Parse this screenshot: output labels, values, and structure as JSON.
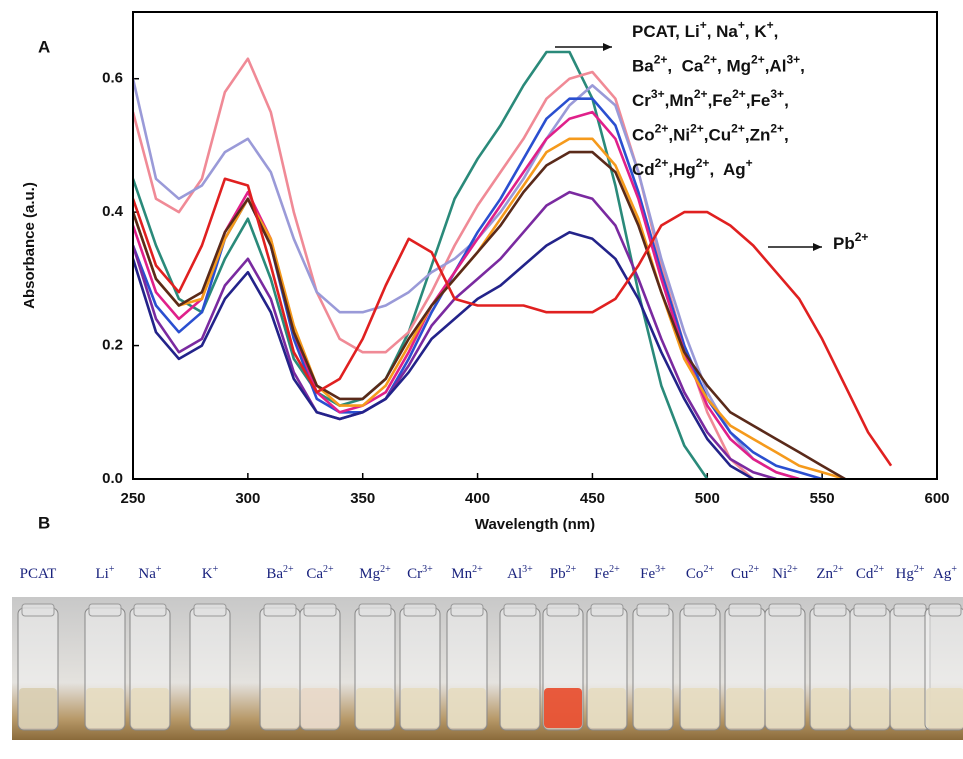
{
  "panel_labels": [
    "A",
    "B"
  ],
  "chart_data": {
    "type": "line",
    "xlabel": "Wavelength (nm)",
    "ylabel": "Absorbance (a.u.)",
    "xlim": [
      250,
      600
    ],
    "ylim": [
      0,
      0.7
    ],
    "xticks": [
      250,
      300,
      350,
      400,
      450,
      500,
      550,
      600
    ],
    "yticks": [
      {
        "value": 0,
        "label": "0.0"
      },
      0.2,
      0.4,
      0.6
    ],
    "x": [
      250,
      260,
      270,
      280,
      290,
      300,
      310,
      320,
      330,
      340,
      350,
      360,
      370,
      380,
      390,
      400,
      410,
      420,
      430,
      440,
      450,
      460,
      470,
      480,
      490,
      500,
      510,
      520,
      530,
      540,
      550,
      560,
      570,
      580,
      590
    ],
    "series": [
      {
        "color": "#2a8a7a",
        "values": [
          0.45,
          0.35,
          0.27,
          0.25,
          0.33,
          0.39,
          0.3,
          0.18,
          0.13,
          0.11,
          0.12,
          0.15,
          0.22,
          0.32,
          0.42,
          0.48,
          0.53,
          0.59,
          0.64,
          0.64,
          0.57,
          0.44,
          0.28,
          0.14,
          0.05,
          0.0,
          null,
          null,
          null,
          null,
          null,
          null,
          null,
          null,
          null
        ]
      },
      {
        "color": "#f08a96",
        "values": [
          0.55,
          0.42,
          0.4,
          0.45,
          0.58,
          0.63,
          0.55,
          0.4,
          0.28,
          0.21,
          0.19,
          0.19,
          0.22,
          0.28,
          0.35,
          0.41,
          0.46,
          0.51,
          0.57,
          0.6,
          0.61,
          0.57,
          0.46,
          0.32,
          0.2,
          0.1,
          0.03,
          0.0,
          null,
          null,
          null,
          null,
          null,
          null,
          null
        ]
      },
      {
        "color": "#9a9ad8",
        "values": [
          0.6,
          0.45,
          0.42,
          0.44,
          0.49,
          0.51,
          0.46,
          0.36,
          0.28,
          0.25,
          0.25,
          0.26,
          0.28,
          0.31,
          0.33,
          0.36,
          0.4,
          0.45,
          0.51,
          0.56,
          0.59,
          0.56,
          0.46,
          0.33,
          0.22,
          0.13,
          0.07,
          0.03,
          0.01,
          0.0,
          null,
          null,
          null,
          null,
          null
        ]
      },
      {
        "color": "#2a4fd0",
        "values": [
          0.35,
          0.26,
          0.22,
          0.25,
          0.36,
          0.42,
          0.35,
          0.21,
          0.12,
          0.1,
          0.1,
          0.12,
          0.18,
          0.25,
          0.31,
          0.37,
          0.42,
          0.48,
          0.54,
          0.57,
          0.57,
          0.53,
          0.43,
          0.31,
          0.2,
          0.12,
          0.07,
          0.04,
          0.02,
          0.01,
          0.0,
          null,
          null,
          null,
          null
        ]
      },
      {
        "color": "#e0208a",
        "values": [
          0.38,
          0.28,
          0.24,
          0.27,
          0.37,
          0.43,
          0.36,
          0.22,
          0.13,
          0.1,
          0.11,
          0.13,
          0.19,
          0.26,
          0.31,
          0.36,
          0.41,
          0.46,
          0.51,
          0.54,
          0.55,
          0.51,
          0.42,
          0.3,
          0.19,
          0.11,
          0.06,
          0.03,
          0.01,
          0.0,
          null,
          null,
          null,
          null,
          null
        ]
      },
      {
        "color": "#f59a1c",
        "values": [
          0.4,
          0.3,
          0.26,
          0.27,
          0.36,
          0.42,
          0.36,
          0.23,
          0.14,
          0.11,
          0.11,
          0.14,
          0.2,
          0.26,
          0.3,
          0.34,
          0.39,
          0.44,
          0.49,
          0.51,
          0.51,
          0.47,
          0.39,
          0.28,
          0.18,
          0.12,
          0.08,
          0.06,
          0.04,
          0.02,
          0.01,
          0.0,
          null,
          null,
          null
        ]
      },
      {
        "color": "#5a2a1a",
        "values": [
          0.4,
          0.3,
          0.26,
          0.28,
          0.37,
          0.42,
          0.35,
          0.22,
          0.14,
          0.12,
          0.12,
          0.15,
          0.21,
          0.26,
          0.3,
          0.34,
          0.38,
          0.43,
          0.47,
          0.49,
          0.49,
          0.46,
          0.38,
          0.28,
          0.19,
          0.14,
          0.1,
          0.08,
          0.06,
          0.04,
          0.02,
          0.0,
          null,
          null,
          null
        ]
      },
      {
        "color": "#7a2aa0",
        "values": [
          0.35,
          0.24,
          0.19,
          0.21,
          0.29,
          0.33,
          0.27,
          0.16,
          0.1,
          0.09,
          0.1,
          0.12,
          0.17,
          0.23,
          0.27,
          0.3,
          0.33,
          0.37,
          0.41,
          0.43,
          0.42,
          0.38,
          0.3,
          0.21,
          0.13,
          0.07,
          0.03,
          0.01,
          0.0,
          null,
          null,
          null,
          null,
          null,
          null
        ]
      },
      {
        "color": "#23238a",
        "values": [
          0.33,
          0.22,
          0.18,
          0.2,
          0.27,
          0.31,
          0.25,
          0.15,
          0.1,
          0.09,
          0.1,
          0.12,
          0.16,
          0.21,
          0.24,
          0.27,
          0.29,
          0.32,
          0.35,
          0.37,
          0.36,
          0.33,
          0.27,
          0.19,
          0.12,
          0.06,
          0.02,
          0.0,
          null,
          null,
          null,
          null,
          null,
          null,
          null
        ]
      },
      {
        "color": "#e02020",
        "values": [
          0.42,
          0.32,
          0.28,
          0.35,
          0.45,
          0.44,
          0.32,
          0.19,
          0.13,
          0.15,
          0.21,
          0.29,
          0.36,
          0.34,
          0.27,
          0.26,
          0.26,
          0.26,
          0.25,
          0.25,
          0.25,
          0.27,
          0.32,
          0.38,
          0.4,
          0.4,
          0.38,
          0.35,
          0.31,
          0.27,
          0.21,
          0.14,
          0.07,
          0.02,
          null
        ]
      }
    ],
    "annotations": [
      {
        "lines": [
          [
            {
              "t": "PCAT, Li",
              "s": "+"
            },
            {
              "t": ", Na",
              "s": "+"
            },
            {
              "t": ", K",
              "s": "+"
            },
            {
              "t": ","
            }
          ],
          [
            {
              "t": "Ba",
              "s": "2+"
            },
            {
              "t": ",  Ca",
              "s": "2+"
            },
            {
              "t": ", Mg",
              "s": "2+"
            },
            {
              "t": ",Al",
              "s": "3+"
            },
            {
              "t": ","
            }
          ],
          [
            {
              "t": "Cr",
              "s": "3+"
            },
            {
              "t": ",Mn",
              "s": "2+"
            },
            {
              "t": ",Fe",
              "s": "2+"
            },
            {
              "t": ",Fe",
              "s": "3+"
            },
            {
              "t": ","
            }
          ],
          [
            {
              "t": "Co",
              "s": "2+"
            },
            {
              "t": ",Ni",
              "s": "2+"
            },
            {
              "t": ",Cu",
              "s": "2+"
            },
            {
              "t": ",Zn",
              "s": "2+"
            },
            {
              "t": ","
            }
          ],
          [
            {
              "t": "Cd",
              "s": "2+"
            },
            {
              "t": ",Hg",
              "s": "2+"
            },
            {
              "t": ",  Ag",
              "s": "+"
            }
          ]
        ]
      },
      {
        "lines": [
          [
            {
              "t": "Pb",
              "s": "2+"
            }
          ]
        ]
      }
    ]
  },
  "vials": [
    {
      "label": "PCAT",
      "color": "#d8cdb0"
    },
    {
      "label": "Li",
      "charge": "+",
      "color": "#e6dcc0"
    },
    {
      "label": "Na",
      "charge": "+",
      "color": "#e6dcc0"
    },
    {
      "label": "K",
      "charge": "+",
      "color": "#e8e0c8"
    },
    {
      "label": "Ba",
      "charge": "2+",
      "color": "#e6dcc8"
    },
    {
      "label": "Ca",
      "charge": "2+",
      "color": "#e8d8c8"
    },
    {
      "label": "Mg",
      "charge": "2+",
      "color": "#e6dcc0"
    },
    {
      "label": "Cr",
      "charge": "3+",
      "color": "#e6dcc0"
    },
    {
      "label": "Mn",
      "charge": "2+",
      "color": "#e6dcc0"
    },
    {
      "label": "Al",
      "charge": "3+",
      "color": "#e6dcc0"
    },
    {
      "label": "Pb",
      "charge": "2+",
      "color": "#e84a2a"
    },
    {
      "label": "Fe",
      "charge": "2+",
      "color": "#e6dcc0"
    },
    {
      "label": "Fe",
      "charge": "3+",
      "color": "#e6dcc0"
    },
    {
      "label": "Co",
      "charge": "2+",
      "color": "#e6dcc0"
    },
    {
      "label": "Cu",
      "charge": "2+",
      "color": "#e6dcc0"
    },
    {
      "label": "Ni",
      "charge": "2+",
      "color": "#e6dcc0"
    },
    {
      "label": "Zn",
      "charge": "2+",
      "color": "#e6dcc0"
    },
    {
      "label": "Cd",
      "charge": "2+",
      "color": "#e6dcc0"
    },
    {
      "label": "Hg",
      "charge": "2+",
      "color": "#e6dcc0"
    },
    {
      "label": "Ag",
      "charge": "+",
      "color": "#e6dcc0"
    }
  ]
}
